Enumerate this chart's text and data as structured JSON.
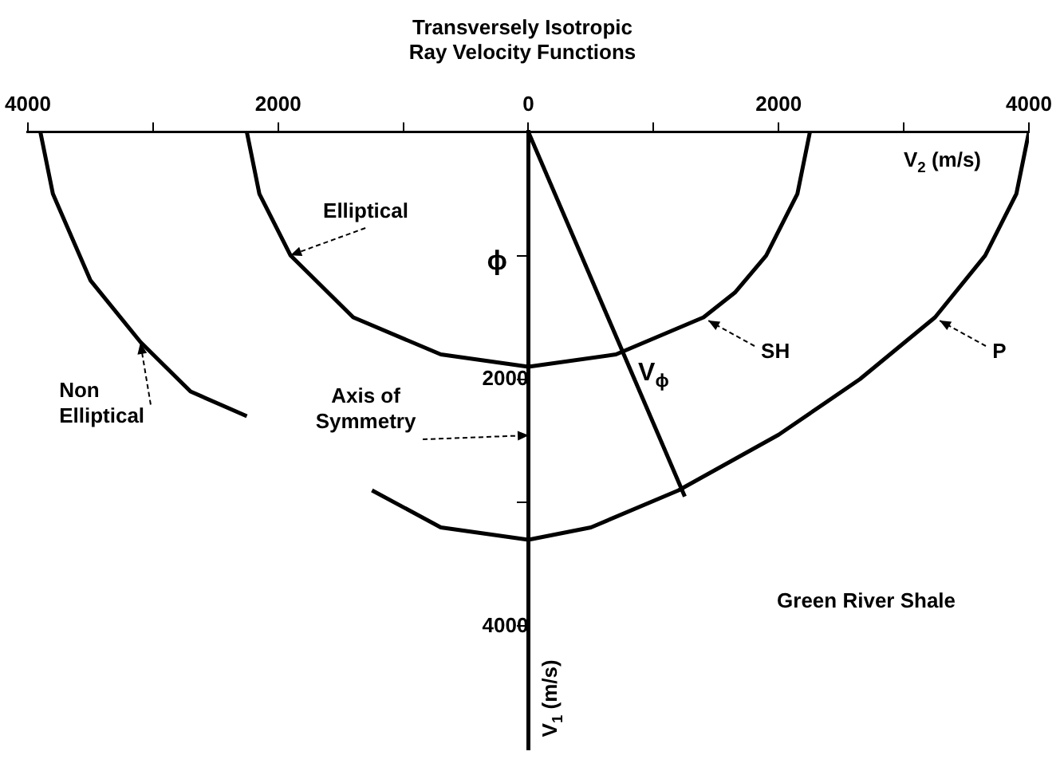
{
  "chart_data": {
    "type": "line",
    "title": "Transversely Isotropic\nRay Velocity Functions",
    "xlabel": "V$_{2}$ (m/s)",
    "ylabel": "V$_{1}$ (m/s)",
    "xlim": [
      -4000,
      4000
    ],
    "xticks": [
      {
        "value": -4000,
        "label": "4000"
      },
      {
        "value": -3000,
        "label": null
      },
      {
        "value": -2000,
        "label": "2000"
      },
      {
        "value": -1000,
        "label": null
      },
      0,
      {
        "value": 1000,
        "label": null
      },
      2000,
      {
        "value": 3000,
        "label": null
      },
      4000
    ],
    "ylim": [
      5000,
      0
    ],
    "yticks": [
      {
        "value": 1000,
        "label": null
      },
      2000,
      {
        "value": 3000,
        "label": null
      },
      4000
    ],
    "grid": false,
    "legend": false,
    "marker": "none",
    "line_style": "solid",
    "series": [
      {
        "name": "SH",
        "color": "#000000",
        "x": [
          2250,
          2150,
          1900,
          1650,
          1400,
          700,
          0,
          -700,
          -1400,
          -1900,
          -2150,
          -2250
        ],
        "values": [
          0,
          500,
          1000,
          1300,
          1500,
          1800,
          1900,
          1800,
          1500,
          1000,
          500,
          0
        ]
      },
      {
        "name": "P",
        "color": "#000000",
        "x": [
          4000,
          3900,
          3650,
          3250,
          2650,
          2000,
          1200,
          500,
          0,
          -700,
          -1250
        ],
        "values": [
          0,
          500,
          1000,
          1500,
          2000,
          2450,
          2900,
          3200,
          3300,
          3200,
          2900
        ]
      },
      {
        "color": "#000000",
        "x": [
          -3900,
          -3800,
          -3500,
          -3100,
          -2700,
          -2250
        ],
        "values": [
          0,
          500,
          1200,
          1700,
          2100,
          2300
        ]
      },
      {
        "color": "#000000",
        "x": [
          0,
          1250
        ],
        "values": [
          0,
          2950
        ]
      }
    ],
    "annotations": [
      {
        "text": "Elliptical",
        "x": -1900,
        "y": 1000
      },
      {
        "text": "Non Elliptical",
        "x": -3100,
        "y": 1700
      },
      "Axis of Symmetry",
      "ϕ",
      "V$_{ϕ}$",
      "Green River Shale"
    ]
  }
}
